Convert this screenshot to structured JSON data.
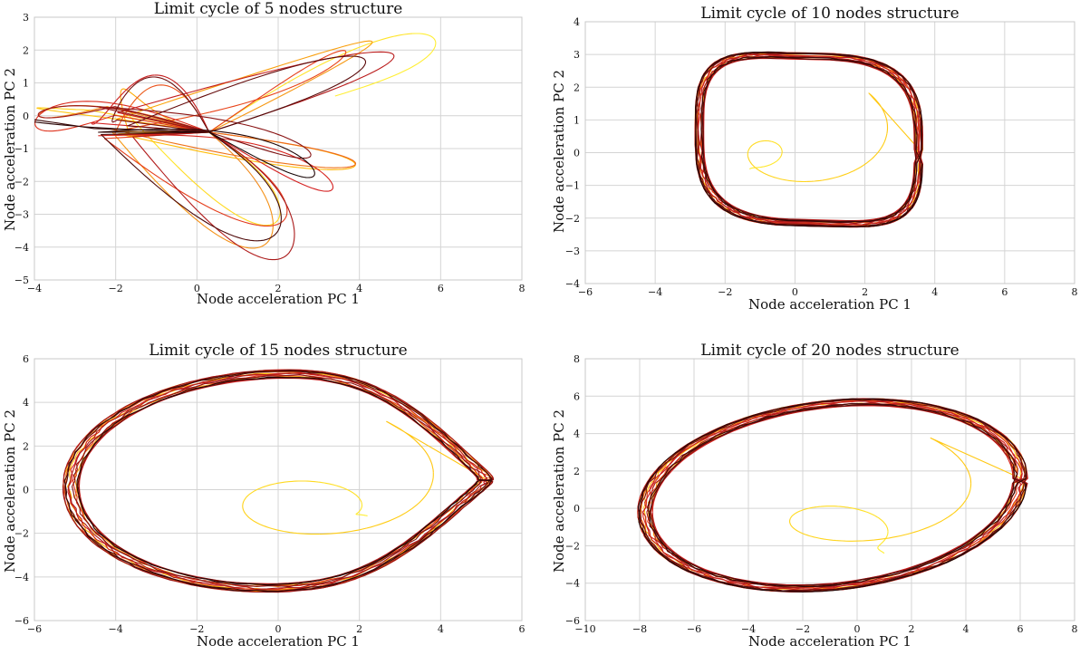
{
  "chart_data": [
    {
      "type": "line",
      "title": "Limit cycle of 5 nodes structure",
      "xlabel": "Node acceleration PC 1",
      "ylabel": "Node acceleration PC 2",
      "xlim": [
        -4,
        8
      ],
      "ylim": [
        -5,
        3
      ],
      "xticks": [
        -4,
        -2,
        0,
        2,
        4,
        6,
        8
      ],
      "yticks": [
        -5,
        -4,
        -3,
        -2,
        -1,
        0,
        1,
        2,
        3
      ],
      "colormap": [
        "#ffee33",
        "#ffb300",
        "#f28a1c",
        "#e8441a",
        "#d42020",
        "#a01818",
        "#5a0a0a",
        "#150505"
      ],
      "trajectory": {
        "kind": "lobes",
        "center": [
          0.3,
          -0.5
        ],
        "loops": 24,
        "lobes": [
          [
            5.5,
            1.9,
            0.15
          ],
          [
            3.0,
            -3.8,
            0.12
          ],
          [
            -3.4,
            -0.2,
            0.05
          ],
          [
            4.4,
            -1.7,
            0.1
          ],
          [
            -0.8,
            0.8,
            0.05
          ]
        ],
        "start": [
          3.4,
          0.6
        ],
        "seed": 5
      }
    },
    {
      "type": "line",
      "title": "Limit cycle of 10 nodes structure",
      "xlabel": "Node acceleration PC 1",
      "ylabel": "Node acceleration PC 2",
      "xlim": [
        -6,
        8
      ],
      "ylim": [
        -4,
        4
      ],
      "xticks": [
        -6,
        -4,
        -2,
        0,
        2,
        4,
        6,
        8
      ],
      "yticks": [
        -4,
        -3,
        -2,
        -1,
        0,
        1,
        2,
        3,
        4
      ],
      "colormap": [
        "#ffee33",
        "#ffb300",
        "#f28a1c",
        "#e8441a",
        "#d42020",
        "#a01818",
        "#5a0a0a",
        "#150505"
      ],
      "trajectory": {
        "kind": "ring",
        "center": [
          0.4,
          0.4
        ],
        "radius": [
          3.3,
          2.6
        ],
        "loops": 20,
        "shape": "rounded-square",
        "start": [
          -1.3,
          -0.5
        ],
        "seed": 10
      }
    },
    {
      "type": "line",
      "title": "Limit cycle of 15 nodes structure",
      "xlabel": "Node acceleration PC 1",
      "ylabel": "Node acceleration PC 2",
      "xlim": [
        -6,
        6
      ],
      "ylim": [
        -6,
        6
      ],
      "xticks": [
        -6,
        -4,
        -2,
        0,
        2,
        4,
        6
      ],
      "yticks": [
        -6,
        -4,
        -2,
        0,
        2,
        4,
        6
      ],
      "colormap": [
        "#ffee33",
        "#ffb300",
        "#f28a1c",
        "#e8441a",
        "#d42020",
        "#a01818",
        "#5a0a0a",
        "#150505"
      ],
      "trajectory": {
        "kind": "ring",
        "center": [
          0.0,
          0.4
        ],
        "radius": [
          5.1,
          5.0
        ],
        "loops": 18,
        "shape": "egg",
        "start": [
          2.2,
          -1.2
        ],
        "seed": 15
      }
    },
    {
      "type": "line",
      "title": "Limit cycle of 20 nodes structure",
      "xlabel": "Node acceleration PC 1",
      "ylabel": "Node acceleration PC 2",
      "xlim": [
        -10,
        8
      ],
      "ylim": [
        -6,
        8
      ],
      "xticks": [
        -10,
        -8,
        -6,
        -4,
        -2,
        0,
        2,
        4,
        6,
        8
      ],
      "yticks": [
        -6,
        -4,
        -2,
        0,
        2,
        4,
        6,
        8
      ],
      "colormap": [
        "#ffee33",
        "#ffb300",
        "#f28a1c",
        "#e8441a",
        "#d42020",
        "#a01818",
        "#5a0a0a",
        "#150505"
      ],
      "trajectory": {
        "kind": "ring",
        "center": [
          -0.9,
          1.1
        ],
        "radius": [
          6.9,
          4.9
        ],
        "loops": 20,
        "shape": "tilted",
        "start": [
          1.0,
          -2.4
        ],
        "seed": 20
      }
    }
  ]
}
